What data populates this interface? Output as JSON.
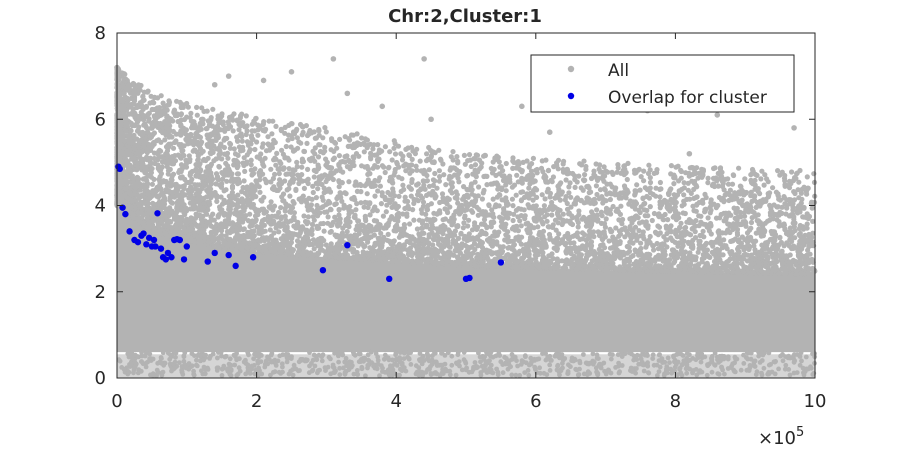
{
  "chart_data": {
    "type": "scatter",
    "title": "Chr:2,Cluster:1",
    "xlabel": "",
    "ylabel": "",
    "xlim": [
      0,
      1000000
    ],
    "ylim": [
      0,
      8
    ],
    "x_exponent_label": "×10",
    "x_exponent_power": "5",
    "x_ticks": [
      0,
      200000,
      400000,
      600000,
      800000,
      1000000
    ],
    "x_tick_labels": [
      "0",
      "2",
      "4",
      "6",
      "8",
      "10"
    ],
    "y_ticks": [
      0,
      2,
      4,
      6,
      8
    ],
    "y_tick_labels": [
      "0",
      "2",
      "4",
      "6",
      "8"
    ],
    "legend_position": "top-right",
    "grid": false,
    "series": [
      {
        "name": "All",
        "color": "#b3b3b3",
        "density_profile": [
          [
            0,
            4.0,
            7.2
          ],
          [
            50000,
            3.4,
            6.6
          ],
          [
            150000,
            3.0,
            6.2
          ],
          [
            300000,
            2.8,
            5.8
          ],
          [
            500000,
            2.6,
            5.2
          ],
          [
            700000,
            2.5,
            5.0
          ],
          [
            1000000,
            2.4,
            4.8
          ]
        ],
        "outliers": [
          [
            0,
            7.2
          ],
          [
            10000,
            6.6
          ],
          [
            60000,
            6.2
          ],
          [
            140000,
            6.8
          ],
          [
            160000,
            7.0
          ],
          [
            210000,
            6.9
          ],
          [
            250000,
            7.1
          ],
          [
            310000,
            7.4
          ],
          [
            330000,
            6.6
          ],
          [
            380000,
            6.3
          ],
          [
            440000,
            7.4
          ],
          [
            450000,
            6.0
          ],
          [
            580000,
            6.3
          ],
          [
            760000,
            6.2
          ],
          [
            860000,
            6.1
          ],
          [
            970000,
            5.8
          ],
          [
            990000,
            4.4
          ],
          [
            620000,
            5.7
          ],
          [
            820000,
            5.2
          ]
        ],
        "band_y": [
          0.2,
          0.3,
          0.55
        ]
      },
      {
        "name": "Overlap for cluster",
        "color": "#0000e6",
        "points": [
          [
            2000,
            4.9
          ],
          [
            4000,
            4.85
          ],
          [
            8000,
            3.95
          ],
          [
            12000,
            3.8
          ],
          [
            18000,
            3.4
          ],
          [
            25000,
            3.2
          ],
          [
            30000,
            3.15
          ],
          [
            35000,
            3.3
          ],
          [
            38000,
            3.35
          ],
          [
            42000,
            3.1
          ],
          [
            46000,
            3.25
          ],
          [
            50000,
            3.05
          ],
          [
            53000,
            3.2
          ],
          [
            55000,
            3.05
          ],
          [
            58000,
            3.82
          ],
          [
            63000,
            3.0
          ],
          [
            66000,
            2.8
          ],
          [
            70000,
            2.75
          ],
          [
            73000,
            2.9
          ],
          [
            78000,
            2.8
          ],
          [
            82000,
            3.2
          ],
          [
            86000,
            3.22
          ],
          [
            90000,
            3.2
          ],
          [
            96000,
            2.75
          ],
          [
            100000,
            3.05
          ],
          [
            130000,
            2.7
          ],
          [
            140000,
            2.9
          ],
          [
            160000,
            2.85
          ],
          [
            170000,
            2.6
          ],
          [
            195000,
            2.8
          ],
          [
            295000,
            2.5
          ],
          [
            330000,
            3.08
          ],
          [
            390000,
            2.3
          ],
          [
            500000,
            2.3
          ],
          [
            505000,
            2.32
          ],
          [
            550000,
            2.68
          ]
        ]
      }
    ]
  }
}
